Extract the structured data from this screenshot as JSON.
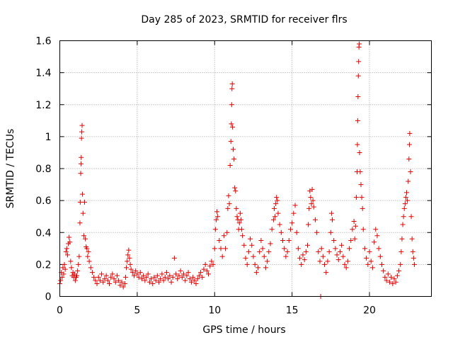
{
  "chart_data": {
    "type": "scatter",
    "title": "Day 285 of 2023, SRMTID for receiver flrs",
    "xlabel": "GPS time / hours",
    "ylabel": "SRMTID / TECUs",
    "xlim": [
      0,
      24
    ],
    "ylim": [
      0,
      1.6
    ],
    "x_ticks": [
      0,
      5,
      10,
      15,
      20
    ],
    "x_tick_labels": [
      "0",
      "5",
      "10",
      "15",
      "20"
    ],
    "y_ticks": [
      0,
      0.2,
      0.4,
      0.6,
      0.8,
      1.0,
      1.2,
      1.4,
      1.6
    ],
    "y_tick_labels": [
      "0",
      "0.2",
      "0.4",
      "0.6",
      "0.8",
      "1",
      "1.2",
      "1.4",
      "1.6"
    ],
    "grid": true,
    "marker": "+",
    "color": "#e00000",
    "series": [
      {
        "name": "flrs",
        "points": [
          [
            0.0,
            0.08
          ],
          [
            0.05,
            0.1
          ],
          [
            0.1,
            0.15
          ],
          [
            0.15,
            0.12
          ],
          [
            0.2,
            0.18
          ],
          [
            0.25,
            0.14
          ],
          [
            0.3,
            0.2
          ],
          [
            0.35,
            0.17
          ],
          [
            0.4,
            0.28
          ],
          [
            0.45,
            0.3
          ],
          [
            0.5,
            0.26
          ],
          [
            0.55,
            0.33
          ],
          [
            0.6,
            0.37
          ],
          [
            0.65,
            0.34
          ],
          [
            0.7,
            0.22
          ],
          [
            0.75,
            0.18
          ],
          [
            0.8,
            0.13
          ],
          [
            0.85,
            0.15
          ],
          [
            0.9,
            0.12
          ],
          [
            0.95,
            0.14
          ],
          [
            1.0,
            0.1
          ],
          [
            1.05,
            0.12
          ],
          [
            1.1,
            0.13
          ],
          [
            1.15,
            0.16
          ],
          [
            1.2,
            0.2
          ],
          [
            1.25,
            0.25
          ],
          [
            1.3,
            0.46
          ],
          [
            1.32,
            0.59
          ],
          [
            1.35,
            0.77
          ],
          [
            1.37,
            0.83
          ],
          [
            1.38,
            0.87
          ],
          [
            1.4,
            0.99
          ],
          [
            1.42,
            1.03
          ],
          [
            1.44,
            1.07
          ],
          [
            1.46,
            0.64
          ],
          [
            1.5,
            0.52
          ],
          [
            1.55,
            0.38
          ],
          [
            1.6,
            0.59
          ],
          [
            1.65,
            0.36
          ],
          [
            1.7,
            0.31
          ],
          [
            1.75,
            0.3
          ],
          [
            1.8,
            0.25
          ],
          [
            1.85,
            0.28
          ],
          [
            1.9,
            0.22
          ],
          [
            2.0,
            0.18
          ],
          [
            2.1,
            0.15
          ],
          [
            2.2,
            0.12
          ],
          [
            2.3,
            0.1
          ],
          [
            2.4,
            0.08
          ],
          [
            2.5,
            0.12
          ],
          [
            2.6,
            0.1
          ],
          [
            2.7,
            0.14
          ],
          [
            2.8,
            0.09
          ],
          [
            2.9,
            0.11
          ],
          [
            3.0,
            0.13
          ],
          [
            3.1,
            0.1
          ],
          [
            3.2,
            0.08
          ],
          [
            3.3,
            0.12
          ],
          [
            3.4,
            0.14
          ],
          [
            3.5,
            0.11
          ],
          [
            3.6,
            0.09
          ],
          [
            3.7,
            0.13
          ],
          [
            3.8,
            0.1
          ],
          [
            3.9,
            0.07
          ],
          [
            4.0,
            0.09
          ],
          [
            4.1,
            0.06
          ],
          [
            4.2,
            0.08
          ],
          [
            4.25,
            0.12
          ],
          [
            4.3,
            0.18
          ],
          [
            4.35,
            0.22
          ],
          [
            4.4,
            0.26
          ],
          [
            4.45,
            0.29
          ],
          [
            4.5,
            0.24
          ],
          [
            4.55,
            0.2
          ],
          [
            4.6,
            0.17
          ],
          [
            4.7,
            0.15
          ],
          [
            4.8,
            0.13
          ],
          [
            4.9,
            0.16
          ],
          [
            5.0,
            0.14
          ],
          [
            5.1,
            0.12
          ],
          [
            5.2,
            0.15
          ],
          [
            5.3,
            0.11
          ],
          [
            5.4,
            0.13
          ],
          [
            5.5,
            0.1
          ],
          [
            5.6,
            0.12
          ],
          [
            5.7,
            0.14
          ],
          [
            5.8,
            0.09
          ],
          [
            5.9,
            0.11
          ],
          [
            6.0,
            0.08
          ],
          [
            6.1,
            0.12
          ],
          [
            6.2,
            0.1
          ],
          [
            6.3,
            0.13
          ],
          [
            6.4,
            0.09
          ],
          [
            6.5,
            0.11
          ],
          [
            6.6,
            0.14
          ],
          [
            6.7,
            0.1
          ],
          [
            6.8,
            0.12
          ],
          [
            6.9,
            0.15
          ],
          [
            7.0,
            0.11
          ],
          [
            7.1,
            0.13
          ],
          [
            7.2,
            0.09
          ],
          [
            7.3,
            0.12
          ],
          [
            7.4,
            0.24
          ],
          [
            7.5,
            0.14
          ],
          [
            7.6,
            0.11
          ],
          [
            7.7,
            0.13
          ],
          [
            7.8,
            0.16
          ],
          [
            7.9,
            0.12
          ],
          [
            8.0,
            0.14
          ],
          [
            8.1,
            0.1
          ],
          [
            8.2,
            0.13
          ],
          [
            8.3,
            0.15
          ],
          [
            8.4,
            0.11
          ],
          [
            8.5,
            0.09
          ],
          [
            8.6,
            0.12
          ],
          [
            8.7,
            0.1
          ],
          [
            8.8,
            0.08
          ],
          [
            8.9,
            0.11
          ],
          [
            9.0,
            0.13
          ],
          [
            9.1,
            0.15
          ],
          [
            9.2,
            0.12
          ],
          [
            9.3,
            0.17
          ],
          [
            9.4,
            0.2
          ],
          [
            9.5,
            0.16
          ],
          [
            9.6,
            0.14
          ],
          [
            9.7,
            0.19
          ],
          [
            9.8,
            0.22
          ],
          [
            9.9,
            0.2
          ],
          [
            10.0,
            0.3
          ],
          [
            10.05,
            0.42
          ],
          [
            10.1,
            0.48
          ],
          [
            10.15,
            0.53
          ],
          [
            10.2,
            0.5
          ],
          [
            10.3,
            0.35
          ],
          [
            10.4,
            0.3
          ],
          [
            10.5,
            0.25
          ],
          [
            10.6,
            0.38
          ],
          [
            10.7,
            0.3
          ],
          [
            10.8,
            0.4
          ],
          [
            10.85,
            0.55
          ],
          [
            10.9,
            0.63
          ],
          [
            10.95,
            0.58
          ],
          [
            11.0,
            0.82
          ],
          [
            11.05,
            0.97
          ],
          [
            11.08,
            1.08
          ],
          [
            11.1,
            1.2
          ],
          [
            11.12,
            1.3
          ],
          [
            11.14,
            1.33
          ],
          [
            11.16,
            1.06
          ],
          [
            11.2,
            0.92
          ],
          [
            11.25,
            0.86
          ],
          [
            11.3,
            0.68
          ],
          [
            11.35,
            0.66
          ],
          [
            11.4,
            0.55
          ],
          [
            11.45,
            0.5
          ],
          [
            11.5,
            0.48
          ],
          [
            11.55,
            0.42
          ],
          [
            11.6,
            0.46
          ],
          [
            11.65,
            0.52
          ],
          [
            11.7,
            0.48
          ],
          [
            11.75,
            0.42
          ],
          [
            11.8,
            0.38
          ],
          [
            11.9,
            0.32
          ],
          [
            12.0,
            0.24
          ],
          [
            12.1,
            0.2
          ],
          [
            12.2,
            0.28
          ],
          [
            12.3,
            0.36
          ],
          [
            12.4,
            0.32
          ],
          [
            12.5,
            0.25
          ],
          [
            12.6,
            0.2
          ],
          [
            12.7,
            0.15
          ],
          [
            12.8,
            0.18
          ],
          [
            12.9,
            0.28
          ],
          [
            13.0,
            0.35
          ],
          [
            13.1,
            0.3
          ],
          [
            13.2,
            0.25
          ],
          [
            13.3,
            0.18
          ],
          [
            13.4,
            0.22
          ],
          [
            13.5,
            0.28
          ],
          [
            13.6,
            0.33
          ],
          [
            13.7,
            0.42
          ],
          [
            13.8,
            0.48
          ],
          [
            13.85,
            0.55
          ],
          [
            13.9,
            0.5
          ],
          [
            13.95,
            0.58
          ],
          [
            14.0,
            0.62
          ],
          [
            14.05,
            0.6
          ],
          [
            14.1,
            0.52
          ],
          [
            14.2,
            0.45
          ],
          [
            14.3,
            0.4
          ],
          [
            14.4,
            0.35
          ],
          [
            14.5,
            0.3
          ],
          [
            14.6,
            0.25
          ],
          [
            14.7,
            0.28
          ],
          [
            14.8,
            0.35
          ],
          [
            14.9,
            0.42
          ],
          [
            15.0,
            0.46
          ],
          [
            15.1,
            0.52
          ],
          [
            15.2,
            0.57
          ],
          [
            15.3,
            0.4
          ],
          [
            15.4,
            0.3
          ],
          [
            15.5,
            0.24
          ],
          [
            15.6,
            0.2
          ],
          [
            15.7,
            0.26
          ],
          [
            15.8,
            0.23
          ],
          [
            15.9,
            0.28
          ],
          [
            16.0,
            0.32
          ],
          [
            16.05,
            0.45
          ],
          [
            16.1,
            0.55
          ],
          [
            16.15,
            0.66
          ],
          [
            16.2,
            0.62
          ],
          [
            16.25,
            0.58
          ],
          [
            16.3,
            0.67
          ],
          [
            16.35,
            0.6
          ],
          [
            16.4,
            0.56
          ],
          [
            16.5,
            0.48
          ],
          [
            16.6,
            0.4
          ],
          [
            16.7,
            0.28
          ],
          [
            16.8,
            0.22
          ],
          [
            16.85,
            0.0
          ],
          [
            16.9,
            0.3
          ],
          [
            17.0,
            0.25
          ],
          [
            17.1,
            0.2
          ],
          [
            17.2,
            0.15
          ],
          [
            17.3,
            0.22
          ],
          [
            17.4,
            0.28
          ],
          [
            17.5,
            0.4
          ],
          [
            17.55,
            0.52
          ],
          [
            17.6,
            0.48
          ],
          [
            17.7,
            0.35
          ],
          [
            17.8,
            0.3
          ],
          [
            17.9,
            0.26
          ],
          [
            18.0,
            0.23
          ],
          [
            18.1,
            0.28
          ],
          [
            18.2,
            0.32
          ],
          [
            18.3,
            0.25
          ],
          [
            18.4,
            0.2
          ],
          [
            18.5,
            0.18
          ],
          [
            18.6,
            0.22
          ],
          [
            18.7,
            0.3
          ],
          [
            18.8,
            0.35
          ],
          [
            18.9,
            0.42
          ],
          [
            19.0,
            0.47
          ],
          [
            19.05,
            0.36
          ],
          [
            19.1,
            0.44
          ],
          [
            19.15,
            0.62
          ],
          [
            19.2,
            0.78
          ],
          [
            19.22,
            0.95
          ],
          [
            19.24,
            1.1
          ],
          [
            19.26,
            1.25
          ],
          [
            19.28,
            1.38
          ],
          [
            19.3,
            1.47
          ],
          [
            19.32,
            1.56
          ],
          [
            19.34,
            1.58
          ],
          [
            19.36,
            0.9
          ],
          [
            19.4,
            0.78
          ],
          [
            19.45,
            0.7
          ],
          [
            19.5,
            0.62
          ],
          [
            19.55,
            0.55
          ],
          [
            19.6,
            0.42
          ],
          [
            19.7,
            0.3
          ],
          [
            19.8,
            0.24
          ],
          [
            19.9,
            0.2
          ],
          [
            20.0,
            0.28
          ],
          [
            20.1,
            0.22
          ],
          [
            20.2,
            0.18
          ],
          [
            20.3,
            0.34
          ],
          [
            20.4,
            0.42
          ],
          [
            20.5,
            0.38
          ],
          [
            20.6,
            0.3
          ],
          [
            20.7,
            0.25
          ],
          [
            20.8,
            0.2
          ],
          [
            20.9,
            0.16
          ],
          [
            21.0,
            0.12
          ],
          [
            21.1,
            0.1
          ],
          [
            21.2,
            0.14
          ],
          [
            21.3,
            0.09
          ],
          [
            21.4,
            0.12
          ],
          [
            21.5,
            0.08
          ],
          [
            21.6,
            0.11
          ],
          [
            21.7,
            0.09
          ],
          [
            21.8,
            0.13
          ],
          [
            21.9,
            0.16
          ],
          [
            22.0,
            0.2
          ],
          [
            22.05,
            0.28
          ],
          [
            22.1,
            0.36
          ],
          [
            22.15,
            0.45
          ],
          [
            22.2,
            0.5
          ],
          [
            22.25,
            0.55
          ],
          [
            22.3,
            0.58
          ],
          [
            22.35,
            0.62
          ],
          [
            22.4,
            0.65
          ],
          [
            22.45,
            0.6
          ],
          [
            22.5,
            0.72
          ],
          [
            22.55,
            0.86
          ],
          [
            22.58,
            0.95
          ],
          [
            22.6,
            1.02
          ],
          [
            22.65,
            0.78
          ],
          [
            22.7,
            0.5
          ],
          [
            22.75,
            0.36
          ],
          [
            22.8,
            0.28
          ],
          [
            22.85,
            0.24
          ],
          [
            22.9,
            0.2
          ]
        ]
      }
    ]
  }
}
